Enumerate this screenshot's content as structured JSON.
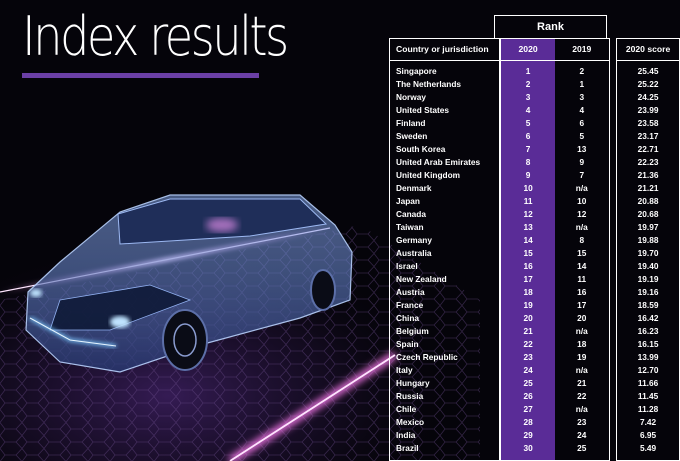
{
  "title": "Index results",
  "table": {
    "group_header": "Rank",
    "columns": [
      "Country or jurisdiction",
      "2020",
      "2019",
      "2020 score"
    ],
    "rows": [
      {
        "country": "Singapore",
        "rank2020": "1",
        "rank2019": "2",
        "score": "25.45"
      },
      {
        "country": "The Netherlands",
        "rank2020": "2",
        "rank2019": "1",
        "score": "25.22"
      },
      {
        "country": "Norway",
        "rank2020": "3",
        "rank2019": "3",
        "score": "24.25"
      },
      {
        "country": "United States",
        "rank2020": "4",
        "rank2019": "4",
        "score": "23.99"
      },
      {
        "country": "Finland",
        "rank2020": "5",
        "rank2019": "6",
        "score": "23.58"
      },
      {
        "country": "Sweden",
        "rank2020": "6",
        "rank2019": "5",
        "score": "23.17"
      },
      {
        "country": "South Korea",
        "rank2020": "7",
        "rank2019": "13",
        "score": "22.71"
      },
      {
        "country": "United Arab Emirates",
        "rank2020": "8",
        "rank2019": "9",
        "score": "22.23"
      },
      {
        "country": "United Kingdom",
        "rank2020": "9",
        "rank2019": "7",
        "score": "21.36"
      },
      {
        "country": "Denmark",
        "rank2020": "10",
        "rank2019": "n/a",
        "score": "21.21"
      },
      {
        "country": "Japan",
        "rank2020": "11",
        "rank2019": "10",
        "score": "20.88"
      },
      {
        "country": "Canada",
        "rank2020": "12",
        "rank2019": "12",
        "score": "20.68"
      },
      {
        "country": "Taiwan",
        "rank2020": "13",
        "rank2019": "n/a",
        "score": "19.97"
      },
      {
        "country": "Germany",
        "rank2020": "14",
        "rank2019": "8",
        "score": "19.88"
      },
      {
        "country": "Australia",
        "rank2020": "15",
        "rank2019": "15",
        "score": "19.70"
      },
      {
        "country": "Israel",
        "rank2020": "16",
        "rank2019": "14",
        "score": "19.40"
      },
      {
        "country": "New Zealand",
        "rank2020": "17",
        "rank2019": "11",
        "score": "19.19"
      },
      {
        "country": "Austria",
        "rank2020": "18",
        "rank2019": "16",
        "score": "19.16"
      },
      {
        "country": "France",
        "rank2020": "19",
        "rank2019": "17",
        "score": "18.59"
      },
      {
        "country": "China",
        "rank2020": "20",
        "rank2019": "20",
        "score": "16.42"
      },
      {
        "country": "Belgium",
        "rank2020": "21",
        "rank2019": "n/a",
        "score": "16.23"
      },
      {
        "country": "Spain",
        "rank2020": "22",
        "rank2019": "18",
        "score": "16.15"
      },
      {
        "country": "Czech Republic",
        "rank2020": "23",
        "rank2019": "19",
        "score": "13.99"
      },
      {
        "country": "Italy",
        "rank2020": "24",
        "rank2019": "n/a",
        "score": "12.70"
      },
      {
        "country": "Hungary",
        "rank2020": "25",
        "rank2019": "21",
        "score": "11.66"
      },
      {
        "country": "Russia",
        "rank2020": "26",
        "rank2019": "22",
        "score": "11.45"
      },
      {
        "country": "Chile",
        "rank2020": "27",
        "rank2019": "n/a",
        "score": "11.28"
      },
      {
        "country": "Mexico",
        "rank2020": "28",
        "rank2019": "23",
        "score": "7.42"
      },
      {
        "country": "India",
        "rank2020": "29",
        "rank2019": "24",
        "score": "6.95"
      },
      {
        "country": "Brazil",
        "rank2020": "30",
        "rank2019": "25",
        "score": "5.49"
      }
    ]
  },
  "colors": {
    "accent": "#5a2c97",
    "rule": "#6b3fa6",
    "background": "#05040a",
    "glow": "#ff66ff"
  }
}
